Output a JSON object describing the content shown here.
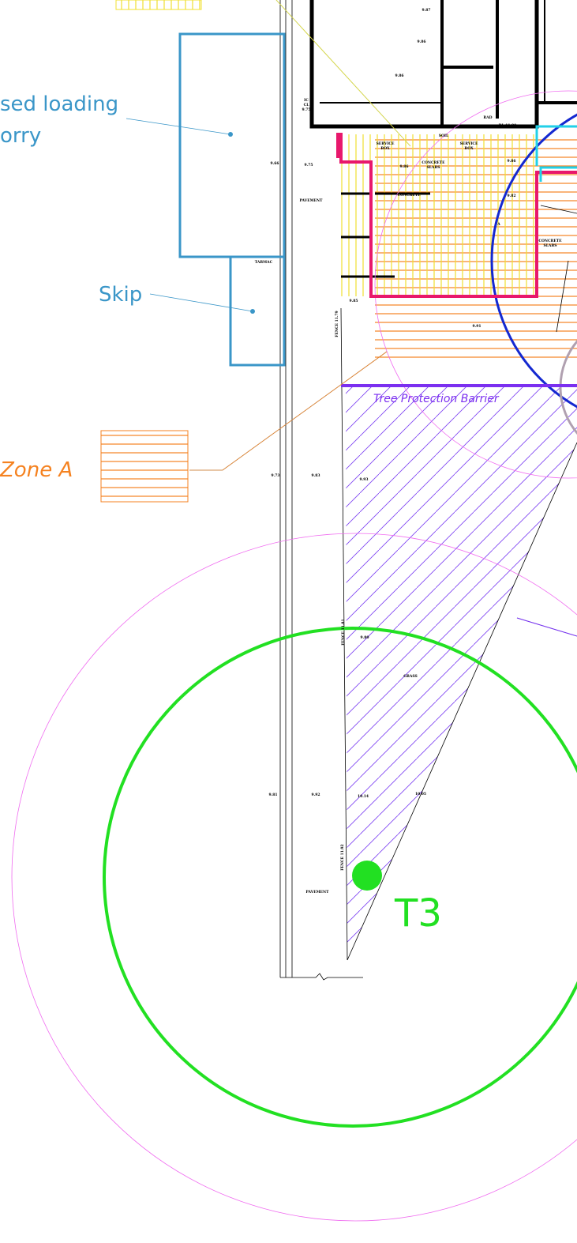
{
  "callouts": {
    "loading": [
      "sed loading",
      "orry"
    ],
    "skip": "Skip",
    "zone": "Zone A",
    "barrier": "Tree Protection Barrier",
    "tree": "T3"
  },
  "plan_labels": [
    "9.87",
    "9.86",
    "9.86",
    "IC",
    "CL",
    "9.75",
    "RAD",
    "BL 11.90",
    "SERVICE",
    "BOX",
    "SOIL",
    "SERVICE",
    "BOX",
    "9.66",
    "9.75",
    "9.86",
    "CONCRETE",
    "SLABS",
    "9.86",
    "9.82",
    "PAVEMENT",
    "CONCRETE",
    "CONCRETE",
    "SLABS",
    "TARMAC",
    "9.85",
    "9.91",
    "FENCE 11.79",
    "9.73",
    "9.83",
    "9.93",
    "FENCE 11.81",
    "9.80",
    "GRASS",
    "9.81",
    "9.92",
    "10.14",
    "10.05",
    "FENCE 11.92",
    "PAVEMENT",
    "A"
  ]
}
